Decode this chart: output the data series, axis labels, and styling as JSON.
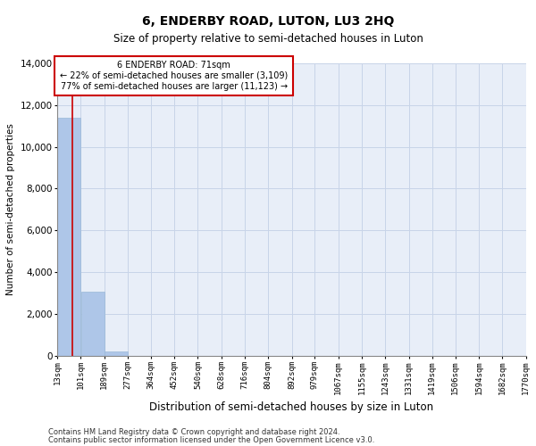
{
  "title": "6, ENDERBY ROAD, LUTON, LU3 2HQ",
  "subtitle": "Size of property relative to semi-detached houses in Luton",
  "xlabel": "Distribution of semi-detached houses by size in Luton",
  "ylabel": "Number of semi-detached properties",
  "bar_color": "#aec6e8",
  "bar_edge_color": "#9ab8d8",
  "grid_color": "#c8d4e8",
  "background_color": "#e8eef8",
  "annotation_line_color": "#cc0000",
  "annotation_box_text": [
    "6 ENDERBY ROAD: 71sqm",
    "← 22% of semi-detached houses are smaller (3,109)",
    "77% of semi-detached houses are larger (11,123) →"
  ],
  "property_sqm": 71,
  "bin_edges": [
    13,
    101,
    189,
    277,
    364,
    452,
    540,
    628,
    716,
    804,
    892,
    979,
    1067,
    1155,
    1243,
    1331,
    1419,
    1506,
    1594,
    1682,
    1770
  ],
  "bar_heights": [
    11370,
    3060,
    185,
    0,
    0,
    0,
    0,
    0,
    0,
    0,
    0,
    0,
    0,
    0,
    0,
    0,
    0,
    0,
    0,
    0
  ],
  "ylim": [
    0,
    14000
  ],
  "yticks": [
    0,
    2000,
    4000,
    6000,
    8000,
    10000,
    12000,
    14000
  ],
  "footnote1": "Contains HM Land Registry data © Crown copyright and database right 2024.",
  "footnote2": "Contains public sector information licensed under the Open Government Licence v3.0."
}
